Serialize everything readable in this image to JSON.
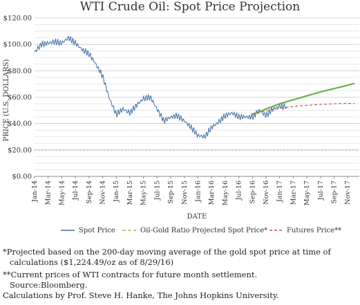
{
  "chart_data": {
    "type": "line",
    "title": "WTI Crude Oil: Spot Price Projection",
    "xlabel": "DATE",
    "ylabel": "PRICE (U.S. DOLLARS)",
    "ylim": [
      0,
      120
    ],
    "y_ticks": [
      "$0.00",
      "$20.00",
      "$40.00",
      "$60.00",
      "$80.00",
      "$100.00",
      "$120.00"
    ],
    "x_ticks": [
      "Jan-14",
      "Mar-14",
      "May-14",
      "Jul-14",
      "Sep-14",
      "Nov-14",
      "Jan-15",
      "Mar-15",
      "May-15",
      "Jul-15",
      "Sep-15",
      "Nov-15",
      "Jan-16",
      "Mar-16",
      "May-16",
      "Jul-16",
      "Sep-16",
      "Nov-16",
      "Jan-17",
      "Mar-17",
      "May-17",
      "Jul-17",
      "Sep-17",
      "Nov-17"
    ],
    "x_range": [
      "2014-01",
      "2017-12"
    ],
    "grid": true,
    "legend_position": "bottom",
    "series": [
      {
        "name": "Spot Price",
        "color": "#3f6fa5",
        "style": "solid",
        "x": [
          "2014-01",
          "2014-02",
          "2014-03",
          "2014-04",
          "2014-05",
          "2014-06",
          "2014-07",
          "2014-08",
          "2014-09",
          "2014-10",
          "2014-11",
          "2014-12",
          "2015-01",
          "2015-02",
          "2015-03",
          "2015-04",
          "2015-05",
          "2015-06",
          "2015-07",
          "2015-08",
          "2015-09",
          "2015-10",
          "2015-11",
          "2015-12",
          "2016-01",
          "2016-02",
          "2016-03",
          "2016-04",
          "2016-05",
          "2016-06",
          "2016-07",
          "2016-08",
          "2016-09",
          "2016-10",
          "2016-11",
          "2016-12",
          "2017-01",
          "2017-02"
        ],
        "values": [
          94,
          100,
          101,
          102,
          101,
          105,
          101,
          96,
          93,
          85,
          76,
          59,
          47,
          51,
          48,
          54,
          59,
          60,
          51,
          42,
          45,
          46,
          42,
          37,
          31,
          30,
          37,
          41,
          46,
          48,
          45,
          45,
          45,
          50,
          46,
          51,
          53,
          53
        ]
      },
      {
        "name": "Oil-Gold Ratio Projected Spot Price*",
        "color": "#6ab04c",
        "style": "solid",
        "x": [
          "2016-09",
          "2016-11",
          "2017-01",
          "2017-03",
          "2017-05",
          "2017-07",
          "2017-09",
          "2017-11",
          "2017-12"
        ],
        "values": [
          47,
          51,
          55,
          58,
          61,
          64,
          66.5,
          69,
          70.5
        ]
      },
      {
        "name": "Futures Price**",
        "color": "#c0504d",
        "style": "dashed",
        "x": [
          "2016-09",
          "2016-11",
          "2017-01",
          "2017-03",
          "2017-05",
          "2017-07",
          "2017-09",
          "2017-11",
          "2017-12"
        ],
        "values": [
          47,
          49.5,
          51.5,
          53,
          53.8,
          54.5,
          55,
          55.3,
          55.2
        ]
      }
    ],
    "reference_line": {
      "value": 20,
      "style": "dashed",
      "color": "#aaaaaa"
    }
  },
  "notes": [
    "*Projected based on the 200-day moving average of the gold spot price at time of",
    "calculations ($1,224.49/oz as of 8/29/16)",
    "**Current prices of WTI contracts for future month settlement.",
    "Source:Bloomberg.",
    "Calculations by Prof. Steve H. Hanke, The Johns Hopkins University."
  ]
}
